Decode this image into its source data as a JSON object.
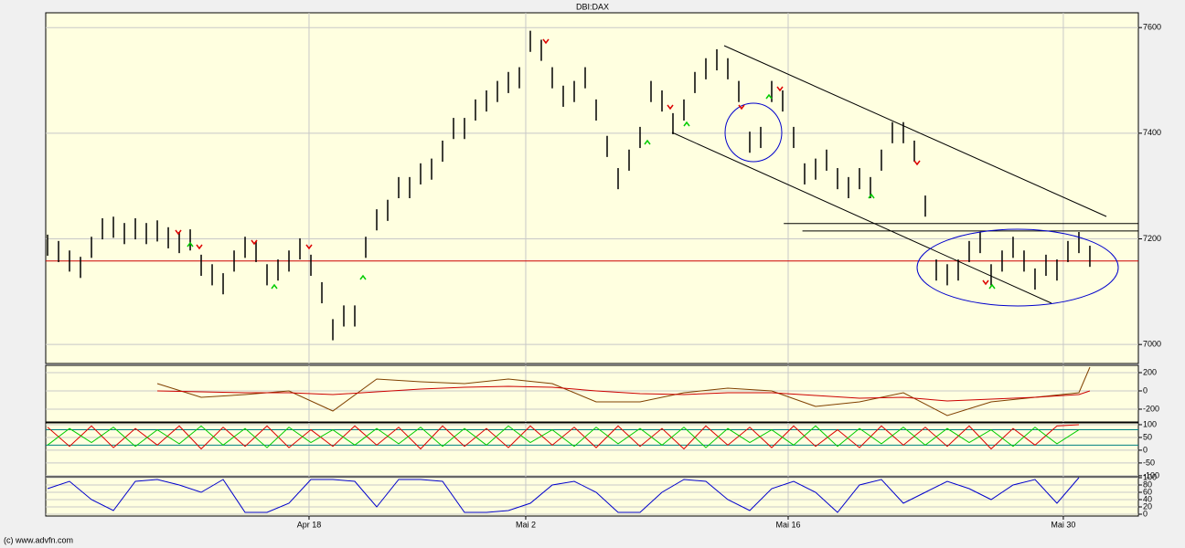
{
  "footer": "(c) www.advfn.com",
  "chart_data": [
    {
      "type": "ohlc",
      "title": "DBI:DAX",
      "xlim": [
        -0.17,
        99.42
      ],
      "ylim": [
        6964,
        7628
      ],
      "yticks": [
        7000,
        7200,
        7400,
        7600
      ],
      "xticks": [
        {
          "value": 23.83,
          "label": "Apr 18"
        },
        {
          "value": 43.58,
          "label": "Mai 2"
        },
        {
          "value": 67.5,
          "label": "Mai 16"
        },
        {
          "value": 92.58,
          "label": "Mai 30"
        }
      ],
      "color": "#000000",
      "grid": true,
      "hlines": [
        {
          "value": 7158,
          "color": "#cc0000",
          "x_from": -0.17
        },
        {
          "value": 7229,
          "color": "#000000",
          "x_from": 67.1
        },
        {
          "value": 7215,
          "color": "#000000",
          "x_from": 68.8
        }
      ],
      "high": [
        7208,
        7196,
        7178,
        7166,
        7204,
        7239,
        7242,
        7230,
        7239,
        7230,
        7235,
        7222,
        7213,
        7218,
        7170,
        7152,
        7135,
        7178,
        7204,
        7196,
        7152,
        7161,
        7178,
        7201,
        7170,
        7118,
        7048,
        7074,
        7074,
        7204,
        7256,
        7274,
        7317,
        7317,
        7343,
        7352,
        7386,
        7429,
        7429,
        7464,
        7481,
        7499,
        7516,
        7525,
        7594,
        7577,
        7525,
        7490,
        7499,
        7525,
        7464,
        7395,
        7334,
        7369,
        7412,
        7499,
        7481,
        7438,
        7464,
        7516,
        7542,
        7559,
        7542,
        7499,
        7403,
        7412,
        7499,
        7481,
        7412,
        7343,
        7352,
        7369,
        7334,
        7317,
        7334,
        7317,
        7369,
        7421,
        7421,
        7386,
        7282,
        7161,
        7152,
        7161,
        7196,
        7213,
        7152,
        7178,
        7204,
        7178,
        7144,
        7170,
        7161,
        7196,
        7213,
        7187
      ],
      "low": [
        7168,
        7156,
        7138,
        7126,
        7164,
        7199,
        7202,
        7190,
        7199,
        7190,
        7195,
        7182,
        7173,
        7178,
        7130,
        7112,
        7095,
        7138,
        7164,
        7156,
        7112,
        7121,
        7138,
        7161,
        7130,
        7078,
        7008,
        7034,
        7034,
        7164,
        7216,
        7234,
        7277,
        7277,
        7303,
        7312,
        7346,
        7389,
        7389,
        7424,
        7441,
        7459,
        7476,
        7485,
        7554,
        7537,
        7485,
        7450,
        7459,
        7485,
        7424,
        7355,
        7294,
        7329,
        7372,
        7459,
        7441,
        7398,
        7424,
        7476,
        7502,
        7519,
        7502,
        7459,
        7363,
        7372,
        7459,
        7441,
        7372,
        7303,
        7312,
        7329,
        7294,
        7277,
        7294,
        7277,
        7329,
        7381,
        7381,
        7346,
        7242,
        7121,
        7112,
        7121,
        7156,
        7173,
        7112,
        7138,
        7164,
        7138,
        7104,
        7130,
        7121,
        7156,
        7173,
        7147
      ]
    },
    {
      "type": "line",
      "xlim": [
        -0.17,
        99.42
      ],
      "ylim": [
        -340,
        280
      ],
      "yticks": [
        200,
        0,
        -200
      ],
      "x": [
        10,
        14,
        18,
        22,
        26,
        30,
        34,
        38,
        42,
        46,
        50,
        54,
        58,
        62,
        66,
        70,
        74,
        78,
        82,
        86,
        90,
        94,
        95
      ],
      "series": [
        {
          "color": "#804000",
          "values": [
            80,
            -70,
            -40,
            0,
            -220,
            130,
            100,
            80,
            130,
            80,
            -120,
            -120,
            -20,
            30,
            0,
            -170,
            -120,
            -20,
            -270,
            -120,
            -70,
            -20,
            260
          ]
        },
        {
          "color": "#cc0000",
          "values": [
            0,
            -10,
            -20,
            -20,
            -40,
            -10,
            20,
            40,
            50,
            40,
            0,
            -30,
            -40,
            -20,
            -20,
            -50,
            -80,
            -70,
            -110,
            -90,
            -70,
            -40,
            0
          ]
        }
      ]
    },
    {
      "type": "line",
      "xlim": [
        -0.17,
        99.42
      ],
      "ylim": [
        -104,
        107
      ],
      "yticks": [
        100,
        50,
        0,
        -50,
        -100
      ],
      "hlines": [
        {
          "value": 80,
          "color": "#008080",
          "x_from": -0.17
        },
        {
          "value": 20,
          "color": "#008080",
          "x_from": -0.17
        }
      ],
      "x": [
        0,
        2,
        4,
        6,
        8,
        10,
        12,
        14,
        16,
        18,
        20,
        22,
        24,
        26,
        28,
        30,
        32,
        34,
        36,
        38,
        40,
        42,
        44,
        46,
        48,
        50,
        52,
        54,
        56,
        58,
        60,
        62,
        64,
        66,
        68,
        70,
        72,
        74,
        76,
        78,
        80,
        82,
        84,
        86,
        88,
        90,
        92,
        94
      ],
      "series": [
        {
          "color": "#dd0000",
          "values": [
            90,
            15,
            95,
            10,
            85,
            20,
            95,
            5,
            90,
            15,
            95,
            10,
            80,
            15,
            95,
            20,
            90,
            5,
            95,
            15,
            85,
            10,
            95,
            20,
            90,
            10,
            95,
            15,
            85,
            5,
            95,
            20,
            90,
            10,
            95,
            15,
            80,
            10,
            95,
            20,
            90,
            15,
            95,
            5,
            85,
            20,
            95,
            100
          ]
        },
        {
          "color": "#00cc00",
          "values": [
            20,
            85,
            30,
            90,
            15,
            80,
            25,
            95,
            20,
            85,
            10,
            90,
            30,
            80,
            20,
            85,
            25,
            90,
            15,
            85,
            20,
            95,
            30,
            80,
            15,
            90,
            25,
            85,
            20,
            90,
            10,
            85,
            30,
            80,
            20,
            95,
            15,
            85,
            25,
            90,
            20,
            85,
            30,
            80,
            15,
            90,
            25,
            80
          ]
        }
      ]
    },
    {
      "type": "line",
      "xlim": [
        -0.17,
        99.42
      ],
      "ylim": [
        -5,
        100
      ],
      "yticks": [
        100,
        80,
        60,
        40,
        20,
        0
      ],
      "x": [
        0,
        2,
        4,
        6,
        8,
        10,
        12,
        14,
        16,
        18,
        20,
        22,
        24,
        26,
        28,
        30,
        32,
        34,
        36,
        38,
        40,
        42,
        44,
        46,
        48,
        50,
        52,
        54,
        56,
        58,
        60,
        62,
        64,
        66,
        68,
        70,
        72,
        74,
        76,
        78,
        80,
        82,
        84,
        86,
        88,
        90,
        92,
        94
      ],
      "series": [
        {
          "color": "#0000cc",
          "values": [
            70,
            90,
            40,
            10,
            90,
            95,
            80,
            60,
            95,
            5,
            5,
            30,
            95,
            95,
            90,
            20,
            95,
            95,
            90,
            5,
            5,
            10,
            30,
            80,
            90,
            60,
            5,
            5,
            60,
            95,
            90,
            40,
            10,
            70,
            90,
            60,
            5,
            80,
            95,
            30,
            60,
            90,
            70,
            40,
            80,
            95,
            30,
            100
          ]
        }
      ]
    }
  ]
}
